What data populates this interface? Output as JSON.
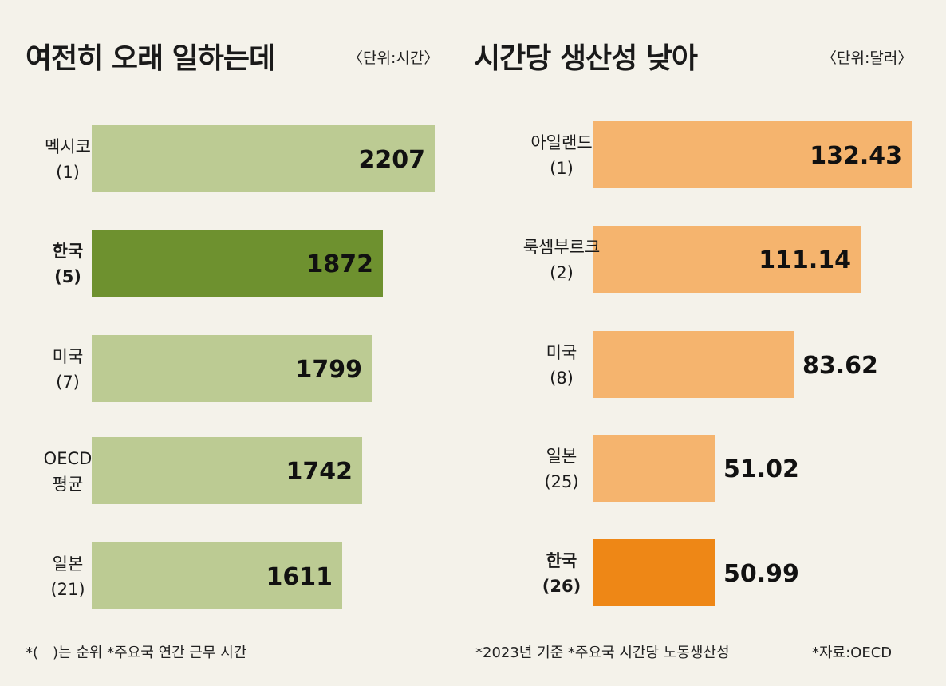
{
  "chart_data": [
    {
      "type": "bar",
      "orientation": "horizontal",
      "title": "여전히 오래 일하는데",
      "unit": "〈단위:시간〉",
      "categories": [
        {
          "name": "멕시코",
          "rank": "(1)"
        },
        {
          "name": "한국",
          "rank": "(5)"
        },
        {
          "name": "미국",
          "rank": "(7)"
        },
        {
          "name": "OECD",
          "rank": "평균"
        },
        {
          "name": "일본",
          "rank": "(21)"
        }
      ],
      "values": [
        2207,
        1872,
        1799,
        1742,
        1611
      ],
      "value_labels": [
        "2207",
        "1872",
        "1799",
        "1742",
        "1611"
      ],
      "highlight_index": 1,
      "colors": {
        "base": "#bccb93",
        "highlight": "#6e912f"
      },
      "xlim": [
        0,
        2207
      ],
      "grid": false
    },
    {
      "type": "bar",
      "orientation": "horizontal",
      "title": "시간당 생산성 낮아",
      "unit": "〈단위:달러〉",
      "categories": [
        {
          "name": "아일랜드",
          "rank": "(1)"
        },
        {
          "name": "룩셈부르크",
          "rank": "(2)"
        },
        {
          "name": "미국",
          "rank": "(8)"
        },
        {
          "name": "일본",
          "rank": "(25)"
        },
        {
          "name": "한국",
          "rank": "(26)"
        }
      ],
      "values": [
        132.43,
        111.14,
        83.62,
        51.02,
        50.99
      ],
      "value_labels": [
        "132.43",
        "111.14",
        "83.62",
        "51.02",
        "50.99"
      ],
      "highlight_index": 4,
      "colors": {
        "base": "#f5b46e",
        "highlight": "#ee8716"
      },
      "xlim": [
        0,
        132.43
      ],
      "grid": false
    }
  ],
  "footer": {
    "left": "*(　)는 순위  *주요국 연간 근무 시간",
    "middle": "*2023년 기준  *주요국 시간당 노동생산성",
    "right": "*자료:OECD"
  }
}
